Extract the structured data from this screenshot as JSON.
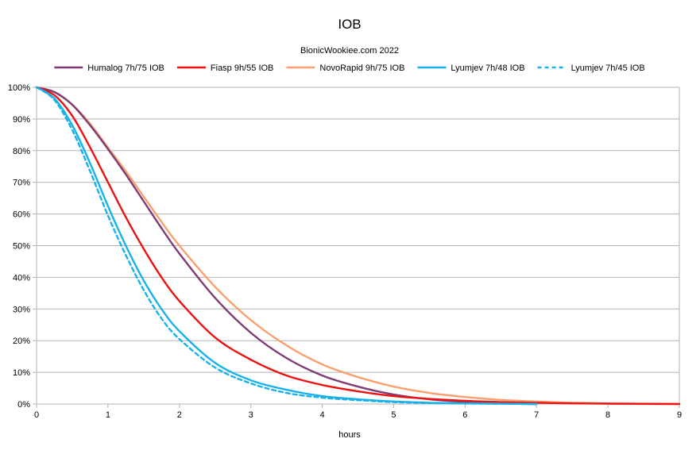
{
  "chart_data": {
    "type": "line",
    "title": "IOB",
    "subtitle": "BionicWookiee.com 2022",
    "xlabel": "hours",
    "ylabel": "",
    "xlim": [
      0,
      9
    ],
    "ylim": [
      0,
      1
    ],
    "x_ticks": [
      0,
      1,
      2,
      3,
      4,
      5,
      6,
      7,
      8,
      9
    ],
    "x_tick_labels": [
      "0",
      "1",
      "2",
      "3",
      "4",
      "5",
      "6",
      "7",
      "8",
      "9"
    ],
    "y_ticks": [
      0,
      0.1,
      0.2,
      0.3,
      0.4,
      0.5,
      0.6,
      0.7,
      0.8,
      0.9,
      1.0
    ],
    "y_tick_labels": [
      "0%",
      "10%",
      "20%",
      "30%",
      "40%",
      "50%",
      "60%",
      "70%",
      "80%",
      "90%",
      "100%"
    ],
    "grid": "horizontal",
    "legend_position": "top",
    "series": [
      {
        "name": "Humalog 7h/75 IOB",
        "color": "#7e3b74",
        "dash": "solid",
        "x": [
          0,
          0.25,
          0.5,
          0.75,
          1,
          1.25,
          1.5,
          1.75,
          2,
          2.5,
          3,
          3.5,
          4,
          4.5,
          5,
          5.5,
          6,
          6.5,
          7
        ],
        "y": [
          1.0,
          0.985,
          0.945,
          0.88,
          0.805,
          0.725,
          0.64,
          0.555,
          0.475,
          0.335,
          0.225,
          0.145,
          0.09,
          0.055,
          0.03,
          0.015,
          0.007,
          0.002,
          0.0
        ]
      },
      {
        "name": "Fiasp 9h/55 IOB",
        "color": "#ee1111",
        "dash": "solid",
        "x": [
          0,
          0.25,
          0.5,
          0.75,
          1,
          1.25,
          1.5,
          1.75,
          2,
          2.5,
          3,
          3.5,
          4,
          4.5,
          5,
          5.5,
          6,
          6.5,
          7,
          7.5,
          8,
          8.5,
          9
        ],
        "y": [
          1.0,
          0.975,
          0.91,
          0.81,
          0.7,
          0.59,
          0.49,
          0.4,
          0.325,
          0.21,
          0.14,
          0.09,
          0.06,
          0.04,
          0.025,
          0.016,
          0.01,
          0.006,
          0.004,
          0.002,
          0.001,
          0.0005,
          0.0
        ]
      },
      {
        "name": "NovoRapid 9h/75 IOB",
        "color": "#f9a06e",
        "dash": "solid",
        "x": [
          0,
          0.25,
          0.5,
          0.75,
          1,
          1.25,
          1.5,
          1.75,
          2,
          2.5,
          3,
          3.5,
          4,
          4.5,
          5,
          5.5,
          6,
          6.5,
          7,
          7.5,
          8,
          8.5,
          9
        ],
        "y": [
          1.0,
          0.985,
          0.945,
          0.885,
          0.81,
          0.735,
          0.655,
          0.575,
          0.5,
          0.37,
          0.265,
          0.185,
          0.125,
          0.085,
          0.055,
          0.035,
          0.022,
          0.013,
          0.008,
          0.004,
          0.002,
          0.001,
          0.0
        ]
      },
      {
        "name": "Lyumjev 7h/48 IOB",
        "color": "#19b2e8",
        "dash": "solid",
        "x": [
          0,
          0.25,
          0.5,
          0.75,
          1,
          1.25,
          1.5,
          1.75,
          2,
          2.5,
          3,
          3.5,
          4,
          4.5,
          5,
          5.5,
          6,
          6.5,
          7
        ],
        "y": [
          1.0,
          0.965,
          0.88,
          0.76,
          0.625,
          0.5,
          0.39,
          0.3,
          0.23,
          0.13,
          0.075,
          0.045,
          0.025,
          0.015,
          0.008,
          0.004,
          0.002,
          0.001,
          0.0
        ]
      },
      {
        "name": "Lyumjev 7h/45 IOB",
        "color": "#19b2e8",
        "dash": "dashed",
        "x": [
          0,
          0.25,
          0.5,
          0.75,
          1,
          1.25,
          1.5,
          1.75,
          2,
          2.5,
          3,
          3.5,
          4,
          4.5,
          5,
          5.5,
          6,
          6.5,
          7
        ],
        "y": [
          1.0,
          0.96,
          0.865,
          0.735,
          0.595,
          0.47,
          0.36,
          0.27,
          0.205,
          0.115,
          0.065,
          0.035,
          0.02,
          0.012,
          0.006,
          0.003,
          0.0015,
          0.0007,
          0.0
        ]
      }
    ]
  }
}
